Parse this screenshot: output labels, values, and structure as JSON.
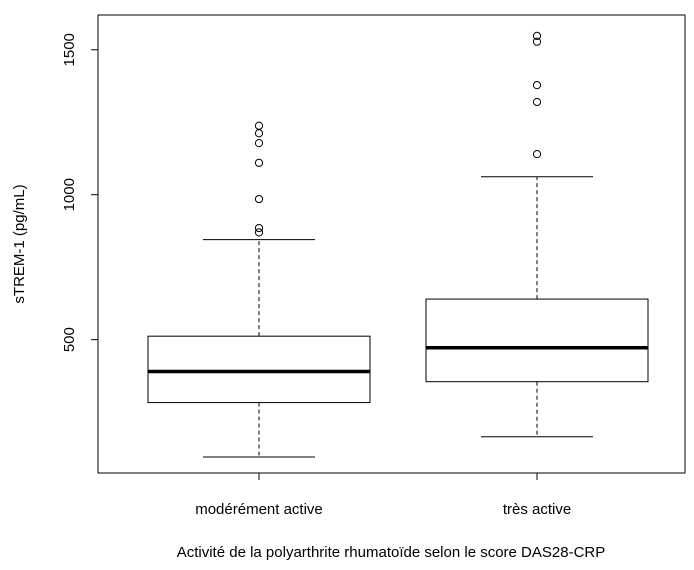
{
  "chart_data": {
    "type": "boxplot",
    "title": "",
    "xlabel": "Activité de la polyarthrite rhumatoïde selon le score DAS28-CRP",
    "ylabel": "sTREM-1 (pg/mL)",
    "ylim": [
      40,
      1620
    ],
    "y_ticks": [
      500,
      1000,
      1500
    ],
    "grid": false,
    "legend": "none",
    "colors": {
      "box_fill": "#ffffff",
      "stroke": "#000000",
      "background": "#ffffff"
    },
    "categories": [
      "modérément active",
      "très active"
    ],
    "boxes": [
      {
        "category": "modérément active",
        "whisker_low": 95,
        "q1": 283,
        "median": 390,
        "q3": 512,
        "whisker_high": 845,
        "outliers": [
          870,
          885,
          985,
          1110,
          1178,
          1212,
          1238
        ]
      },
      {
        "category": "très active",
        "whisker_low": 165,
        "q1": 355,
        "median": 472,
        "q3": 640,
        "whisker_high": 1062,
        "outliers": [
          1140,
          1320,
          1378,
          1528,
          1548
        ]
      }
    ]
  }
}
